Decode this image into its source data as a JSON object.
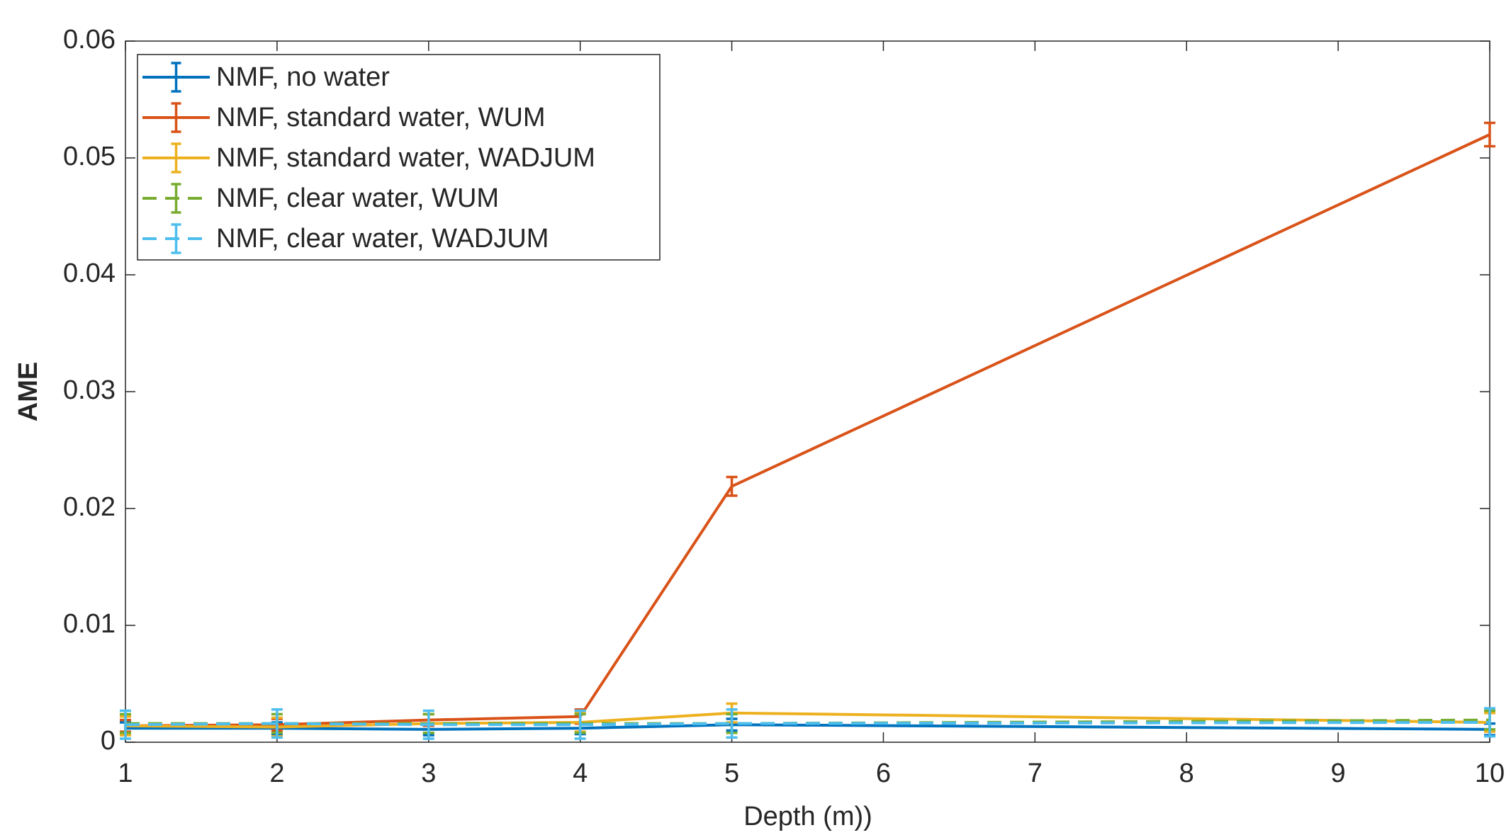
{
  "chart_data": {
    "type": "errorbar-line",
    "xlabel": "Depth (m))",
    "ylabel": "AME",
    "x": [
      1,
      2,
      3,
      4,
      5,
      10
    ],
    "xlim": [
      1,
      10
    ],
    "xticks": [
      1,
      2,
      3,
      4,
      5,
      6,
      7,
      8,
      9,
      10
    ],
    "ylim": [
      0,
      0.06
    ],
    "yticks": [
      0,
      0.01,
      0.02,
      0.03,
      0.04,
      0.05,
      0.06
    ],
    "legend": "northwest",
    "box": true,
    "series": [
      {
        "name": "NMF, no water",
        "color": "#0072bd",
        "dashed": false,
        "values": [
          0.0012,
          0.0012,
          0.0011,
          0.0012,
          0.0015,
          0.0011
        ],
        "errors": [
          0.0005,
          0.0005,
          0.0005,
          0.0005,
          0.0005,
          0.0005
        ]
      },
      {
        "name": "NMF, standard water, WUM",
        "color": "#d95319",
        "dashed": false,
        "values": [
          0.0014,
          0.0015,
          0.0019,
          0.0022,
          0.0219,
          0.052
        ],
        "errors": [
          0.0005,
          0.0005,
          0.0005,
          0.0006,
          0.0008,
          0.001
        ]
      },
      {
        "name": "NMF, standard water, WADJUM",
        "color": "#edb120",
        "dashed": false,
        "values": [
          0.0014,
          0.0013,
          0.0016,
          0.0017,
          0.0025,
          0.0017
        ],
        "errors": [
          0.0008,
          0.0008,
          0.0008,
          0.0008,
          0.0008,
          0.0008
        ]
      },
      {
        "name": "NMF, clear water, WUM",
        "color": "#77ac30",
        "dashed": true,
        "values": [
          0.0016,
          0.0016,
          0.0016,
          0.0016,
          0.0016,
          0.0019
        ],
        "errors": [
          0.0008,
          0.0008,
          0.0008,
          0.0008,
          0.0008,
          0.0008
        ]
      },
      {
        "name": "NMF, clear water, WADJUM",
        "color": "#4dbeee",
        "dashed": true,
        "values": [
          0.0015,
          0.0016,
          0.0015,
          0.0015,
          0.0016,
          0.0017
        ],
        "errors": [
          0.0012,
          0.0012,
          0.0012,
          0.0012,
          0.0012,
          0.0012
        ]
      }
    ]
  }
}
